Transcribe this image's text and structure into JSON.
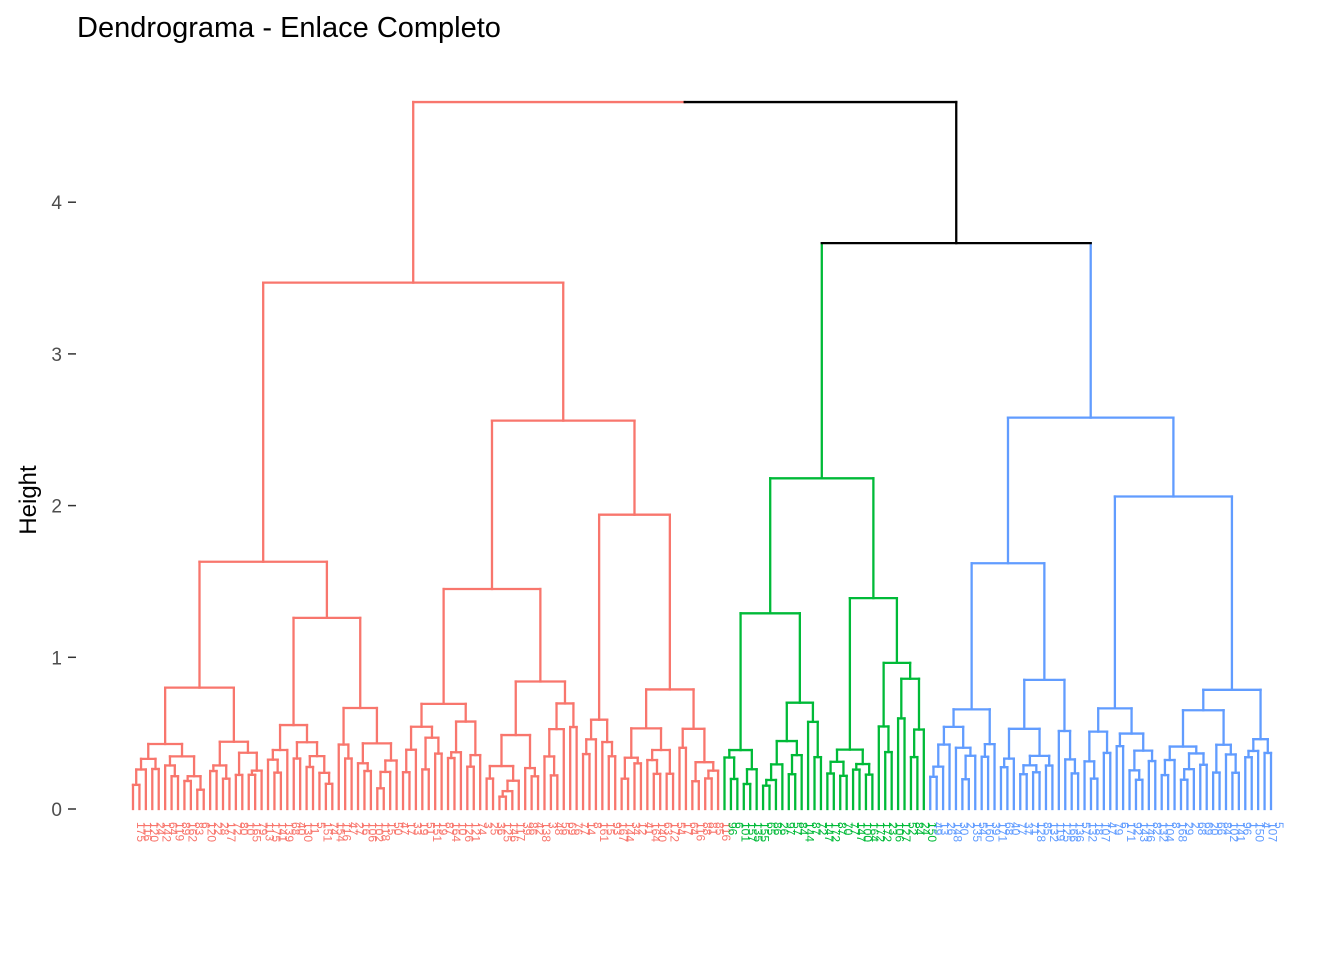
{
  "chart_data": {
    "type": "dendrogram",
    "title": "Dendrograma - Enlace Completo",
    "ylabel": "Height",
    "xlabel": "",
    "ylim": [
      0,
      4.7
    ],
    "y_ticks": [
      0,
      1,
      2,
      3,
      4
    ],
    "grid": false,
    "legend": "none",
    "root_height": 4.66,
    "clusters": [
      {
        "color": "#F8766D",
        "leaves": 92,
        "height": 4.66,
        "subclusters": [
          {
            "height": 3.47,
            "subclusters": [
              {
                "height": 1.63
              },
              {
                "height": 2.56,
                "subclusters": [
                  {
                    "height": 1.45
                  },
                  {
                    "height": 1.94
                  }
                ]
              }
            ]
          }
        ]
      },
      {
        "color": "#00BA38",
        "leaves": 32,
        "height": 2.18,
        "subclusters": [
          {
            "height": 1.29
          },
          {
            "height": 1.39
          }
        ]
      },
      {
        "color": "#619CFF",
        "leaves": 54,
        "height": 2.58,
        "subclusters": [
          {
            "height": 1.62
          },
          {
            "height": 2.06
          }
        ]
      }
    ],
    "top_merge": {
      "color": "#000000",
      "height": 4.66,
      "right_child_height": 3.73
    }
  }
}
